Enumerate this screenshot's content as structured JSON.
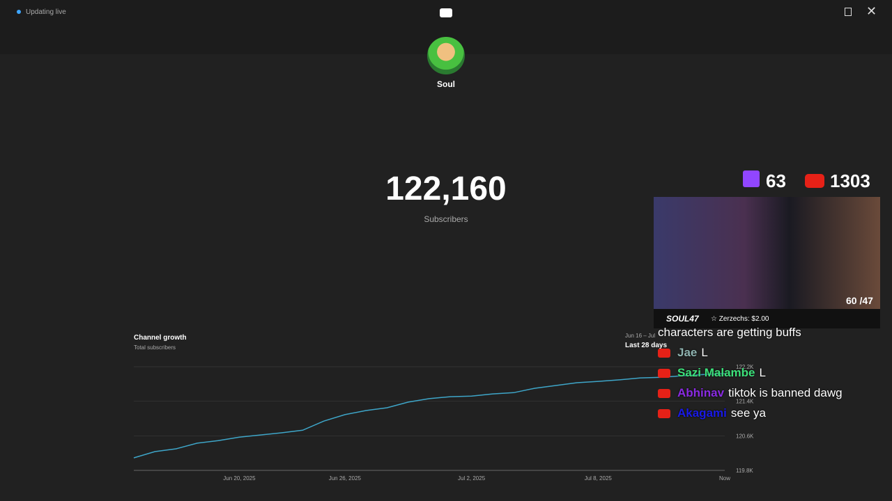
{
  "header": {
    "status": "Updating live"
  },
  "channel": {
    "name": "Soul"
  },
  "counter": {
    "value": "122,160",
    "label": "Subscribers"
  },
  "chart_data": {
    "type": "line",
    "title": "Channel growth",
    "subtitle": "Total subscribers",
    "range_label": "Jun 16 – Jul",
    "period": "Last 28 days",
    "categories": [
      null,
      null,
      null,
      null,
      null,
      "Jun 20, 2025",
      null,
      null,
      null,
      null,
      "Jun 26, 2025",
      null,
      null,
      null,
      null,
      null,
      "Jul 2, 2025",
      null,
      null,
      null,
      null,
      null,
      "Jul 8, 2025",
      null,
      null,
      null,
      null,
      null,
      "Now"
    ],
    "series": [
      {
        "name": "Total subscribers",
        "color": "#3ea6c9",
        "values": [
          120090,
          120235,
          120300,
          120430,
          120490,
          120570,
          120620,
          120670,
          120730,
          120940,
          121090,
          121185,
          121250,
          121380,
          121460,
          121505,
          121520,
          121570,
          121600,
          121700,
          121765,
          121830,
          121860,
          121895,
          121940,
          121955,
          121990,
          122020,
          122040
        ]
      }
    ],
    "ylim": [
      119800,
      122200
    ],
    "yticks": [
      {
        "value": 119800,
        "label": "119.8K"
      },
      {
        "value": 120600,
        "label": "120.6K"
      },
      {
        "value": 121400,
        "label": "121.4K"
      },
      {
        "value": 122200,
        "label": "122.2K"
      }
    ],
    "grid": true
  },
  "stream": {
    "twitch_viewers": "63",
    "youtube_viewers": "1303",
    "goal": "60 /47",
    "brand": "SOUL47",
    "donation": "☆ Zerzechs: $2.00"
  },
  "chat": [
    {
      "text": "characters are getting buffs"
    },
    {
      "name": "Jae",
      "color": "#8fb3b0",
      "text": "L"
    },
    {
      "name": "Sazi Malambe",
      "color": "#3de07a",
      "text": "L"
    },
    {
      "name": "Abhinav",
      "color": "#8a2be2",
      "text": "tiktok is banned dawg"
    },
    {
      "name": "Akagami",
      "color": "#1a1ae6",
      "text": "see ya"
    }
  ]
}
